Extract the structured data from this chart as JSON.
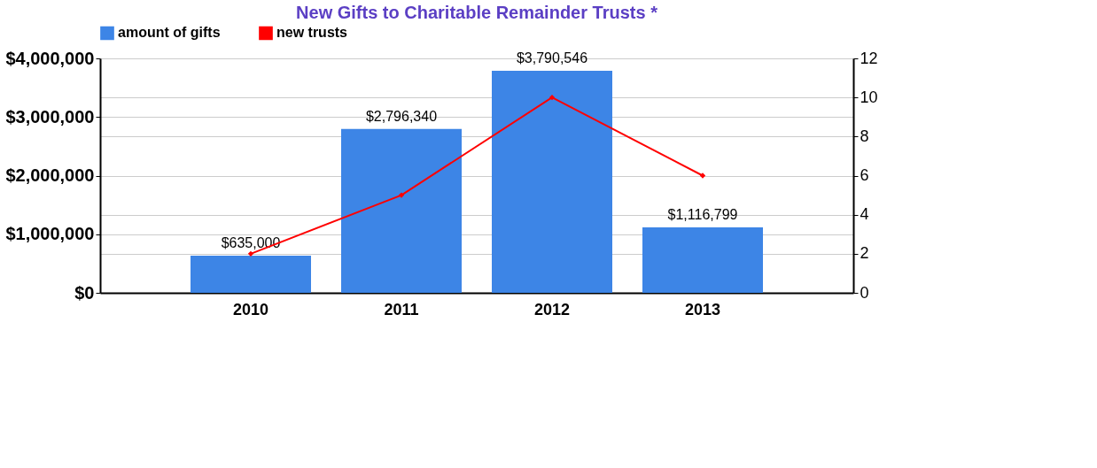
{
  "chart_data": {
    "type": "bar",
    "title": "New Gifts to Charitable Remainder Trusts *",
    "categories": [
      "2010",
      "2011",
      "2012",
      "2013"
    ],
    "series": [
      {
        "name": "amount of gifts",
        "color": "#3d85e6",
        "values": [
          635000,
          2796340,
          3790546,
          1116799
        ],
        "value_labels": [
          "$635,000",
          "$2,796,340",
          "$3,790,546",
          "$1,116,799"
        ]
      },
      {
        "name": "new trusts",
        "type": "line",
        "axis": "y2",
        "color": "#ff0000",
        "values": [
          2,
          5,
          10,
          6
        ],
        "marker": "diamond"
      }
    ],
    "ylim": [
      0,
      4000000
    ],
    "yticks": [
      {
        "value": 0,
        "label": "$0"
      },
      {
        "value": 1000000,
        "label": "$1,000,000"
      },
      {
        "value": 2000000,
        "label": "$2,000,000"
      },
      {
        "value": 3000000,
        "label": "$3,000,000"
      },
      {
        "value": 4000000,
        "label": "$4,000,000"
      }
    ],
    "y2lim": [
      0,
      12
    ],
    "y2ticks": [
      0,
      2,
      4,
      6,
      8,
      10,
      12
    ],
    "grid": true,
    "legend": "top"
  }
}
